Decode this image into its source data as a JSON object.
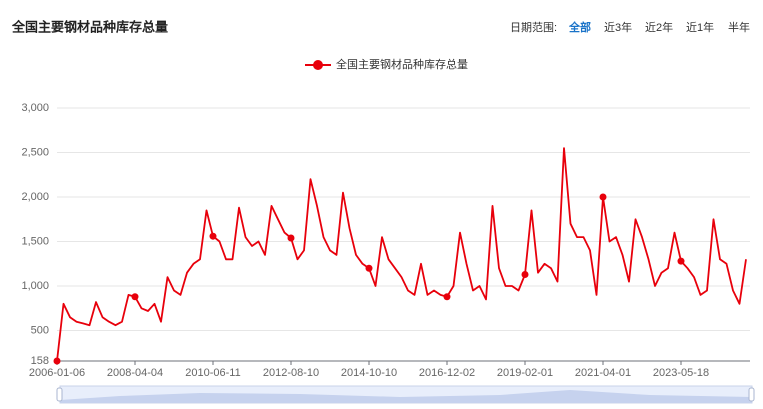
{
  "header": {
    "title": "全国主要钢材品种库存总量",
    "range_label": "日期范围:",
    "range_options": [
      "全部",
      "近3年",
      "近2年",
      "近1年",
      "半年"
    ]
  },
  "chart_data": {
    "type": "line",
    "categories": [
      "2006-01-06",
      null,
      null,
      null,
      null,
      null,
      null,
      null,
      null,
      null,
      null,
      null,
      "2008-04-04",
      null,
      null,
      null,
      null,
      null,
      null,
      null,
      null,
      null,
      null,
      null,
      "2010-06-11",
      null,
      null,
      null,
      null,
      null,
      null,
      null,
      null,
      null,
      null,
      null,
      "2012-08-10",
      null,
      null,
      null,
      null,
      null,
      null,
      null,
      null,
      null,
      null,
      null,
      "2014-10-10",
      null,
      null,
      null,
      null,
      null,
      null,
      null,
      null,
      null,
      null,
      null,
      "2016-12-02",
      null,
      null,
      null,
      null,
      null,
      null,
      null,
      null,
      null,
      null,
      null,
      "2019-02-01",
      null,
      null,
      null,
      null,
      null,
      null,
      null,
      null,
      null,
      null,
      null,
      "2021-04-01",
      null,
      null,
      null,
      null,
      null,
      null,
      null,
      null,
      null,
      null,
      null,
      "2023-05-18",
      null,
      null,
      null,
      null,
      null,
      null,
      null,
      null,
      null,
      null
    ],
    "series": [
      {
        "name": "全国主要钢材品种库存总量",
        "color": "#e8000b",
        "values": [
          158,
          800,
          650,
          600,
          580,
          560,
          820,
          650,
          600,
          560,
          600,
          900,
          880,
          750,
          720,
          800,
          600,
          1100,
          950,
          900,
          1150,
          1250,
          1300,
          1850,
          1560,
          1500,
          1300,
          1300,
          1880,
          1550,
          1450,
          1500,
          1350,
          1900,
          1750,
          1600,
          1540,
          1300,
          1400,
          2200,
          1900,
          1550,
          1400,
          1350,
          2050,
          1650,
          1350,
          1250,
          1200,
          1000,
          1550,
          1300,
          1200,
          1100,
          950,
          900,
          1250,
          900,
          950,
          900,
          880,
          1000,
          1600,
          1250,
          950,
          1000,
          850,
          1900,
          1200,
          1000,
          1000,
          950,
          1130,
          1850,
          1150,
          1250,
          1200,
          1050,
          2550,
          1700,
          1550,
          1550,
          1400,
          900,
          2000,
          1500,
          1550,
          1350,
          1050,
          1750,
          1550,
          1300,
          1000,
          1150,
          1200,
          1600,
          1280,
          1200,
          1100,
          900,
          950,
          1750,
          1300,
          1250,
          950,
          800,
          1300
        ]
      }
    ],
    "ylim": [
      158,
      3000
    ],
    "yticks": [
      158,
      500,
      {
        "value": 1000,
        "label": "1,000"
      },
      {
        "value": 1500,
        "label": "1,500"
      },
      {
        "value": 2000,
        "label": "2,000"
      },
      {
        "value": 2500,
        "label": "2,500"
      },
      {
        "value": 3000,
        "label": "3,000"
      }
    ],
    "grid": true,
    "legend": "top"
  }
}
